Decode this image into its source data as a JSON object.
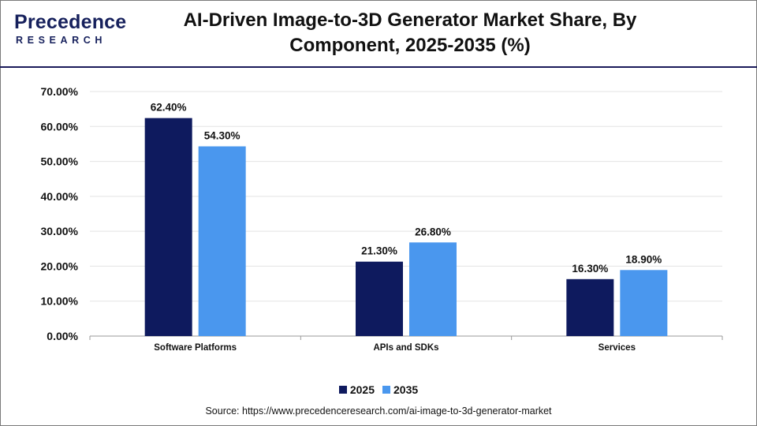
{
  "header": {
    "logo_main": "Precedence",
    "logo_sub": "RESEARCH",
    "title_line1": "AI-Driven Image-to-3D Generator Market Share, By",
    "title_line2": "Component, 2025-2035 (%)"
  },
  "chart_data": {
    "type": "bar",
    "title": "AI-Driven Image-to-3D Generator Market Share, By Component, 2025-2035 (%)",
    "categories": [
      "Software Platforms",
      "APIs and SDKs",
      "Services"
    ],
    "series": [
      {
        "name": "2025",
        "values": [
          62.4,
          21.3,
          16.3
        ],
        "labels": [
          "62.40%",
          "21.30%",
          "16.30%"
        ],
        "color": "#0e1a5e"
      },
      {
        "name": "2035",
        "values": [
          54.3,
          26.8,
          18.9
        ],
        "labels": [
          "54.30%",
          "26.80%",
          "18.90%"
        ],
        "color": "#4a97ee"
      }
    ],
    "ylim": [
      0,
      70
    ],
    "yticks": [
      "0.00%",
      "10.00%",
      "20.00%",
      "30.00%",
      "40.00%",
      "50.00%",
      "60.00%",
      "70.00%"
    ],
    "xlabel": "",
    "ylabel": "",
    "grid": true,
    "legend_position": "bottom"
  },
  "source": "Source: https://www.precedenceresearch.com/ai-image-to-3d-generator-market"
}
